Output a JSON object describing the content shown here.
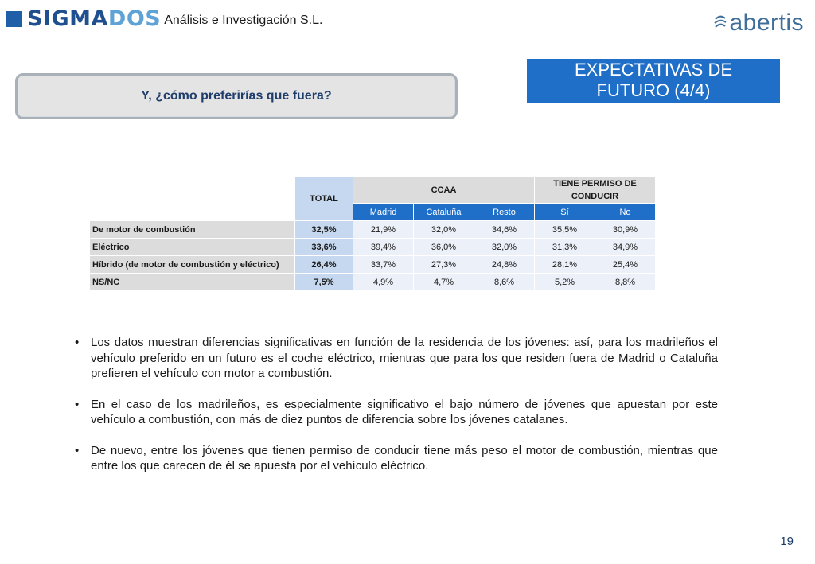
{
  "header": {
    "brand_part1": "SIGMA",
    "brand_part2": "DOS",
    "brand_sub": "Análisis e Investigación S.L.",
    "client_logo": "abertis"
  },
  "section_title_line1": "EXPECTATIVAS DE",
  "section_title_line2": "FUTURO (4/4)",
  "question": "Y, ¿cómo preferirías que fuera?",
  "table": {
    "total_header": "TOTAL",
    "group_ccaa": "CCAA",
    "group_permiso": "TIENE PERMISO DE CONDUCIR",
    "sub_headers": [
      "Madrid",
      "Cataluña",
      "Resto",
      "Sí",
      "No"
    ],
    "rows": [
      {
        "label": "De motor de combustión",
        "total": "32,5%",
        "values": [
          "21,9%",
          "32,0%",
          "34,6%",
          "35,5%",
          "30,9%"
        ]
      },
      {
        "label": "Eléctrico",
        "total": "33,6%",
        "values": [
          "39,4%",
          "36,0%",
          "32,0%",
          "31,3%",
          "34,9%"
        ]
      },
      {
        "label": "Híbrido (de motor de combustión y eléctrico)",
        "total": "26,4%",
        "values": [
          "33,7%",
          "27,3%",
          "24,8%",
          "28,1%",
          "25,4%"
        ]
      },
      {
        "label": "NS/NC",
        "total": "7,5%",
        "values": [
          "4,9%",
          "4,7%",
          "8,6%",
          "5,2%",
          "8,8%"
        ]
      }
    ]
  },
  "bullets": [
    "Los datos muestran diferencias significativas en función de la residencia de los jóvenes: así, para los madrileños el vehículo preferido en un futuro es el coche eléctrico, mientras que para los que residen fuera de Madrid o Cataluña prefieren el vehículo con motor a combustión.",
    "En el caso de los madrileños, es especialmente significativo el bajo número de jóvenes que apuestan por este vehículo a combustión, con más de diez puntos de diferencia sobre los jóvenes catalanes.",
    "De nuevo, entre los jóvenes que tienen permiso de conducir tiene más peso el motor de combustión, mientras que entre los que carecen de él se apuesta por el vehículo eléctrico."
  ],
  "bullet_glyph": "•",
  "page_number": "19",
  "colors": {
    "accent_blue": "#1f6fc8",
    "total_blue": "#c6d8ef",
    "header_grey": "#dcdcdc"
  }
}
